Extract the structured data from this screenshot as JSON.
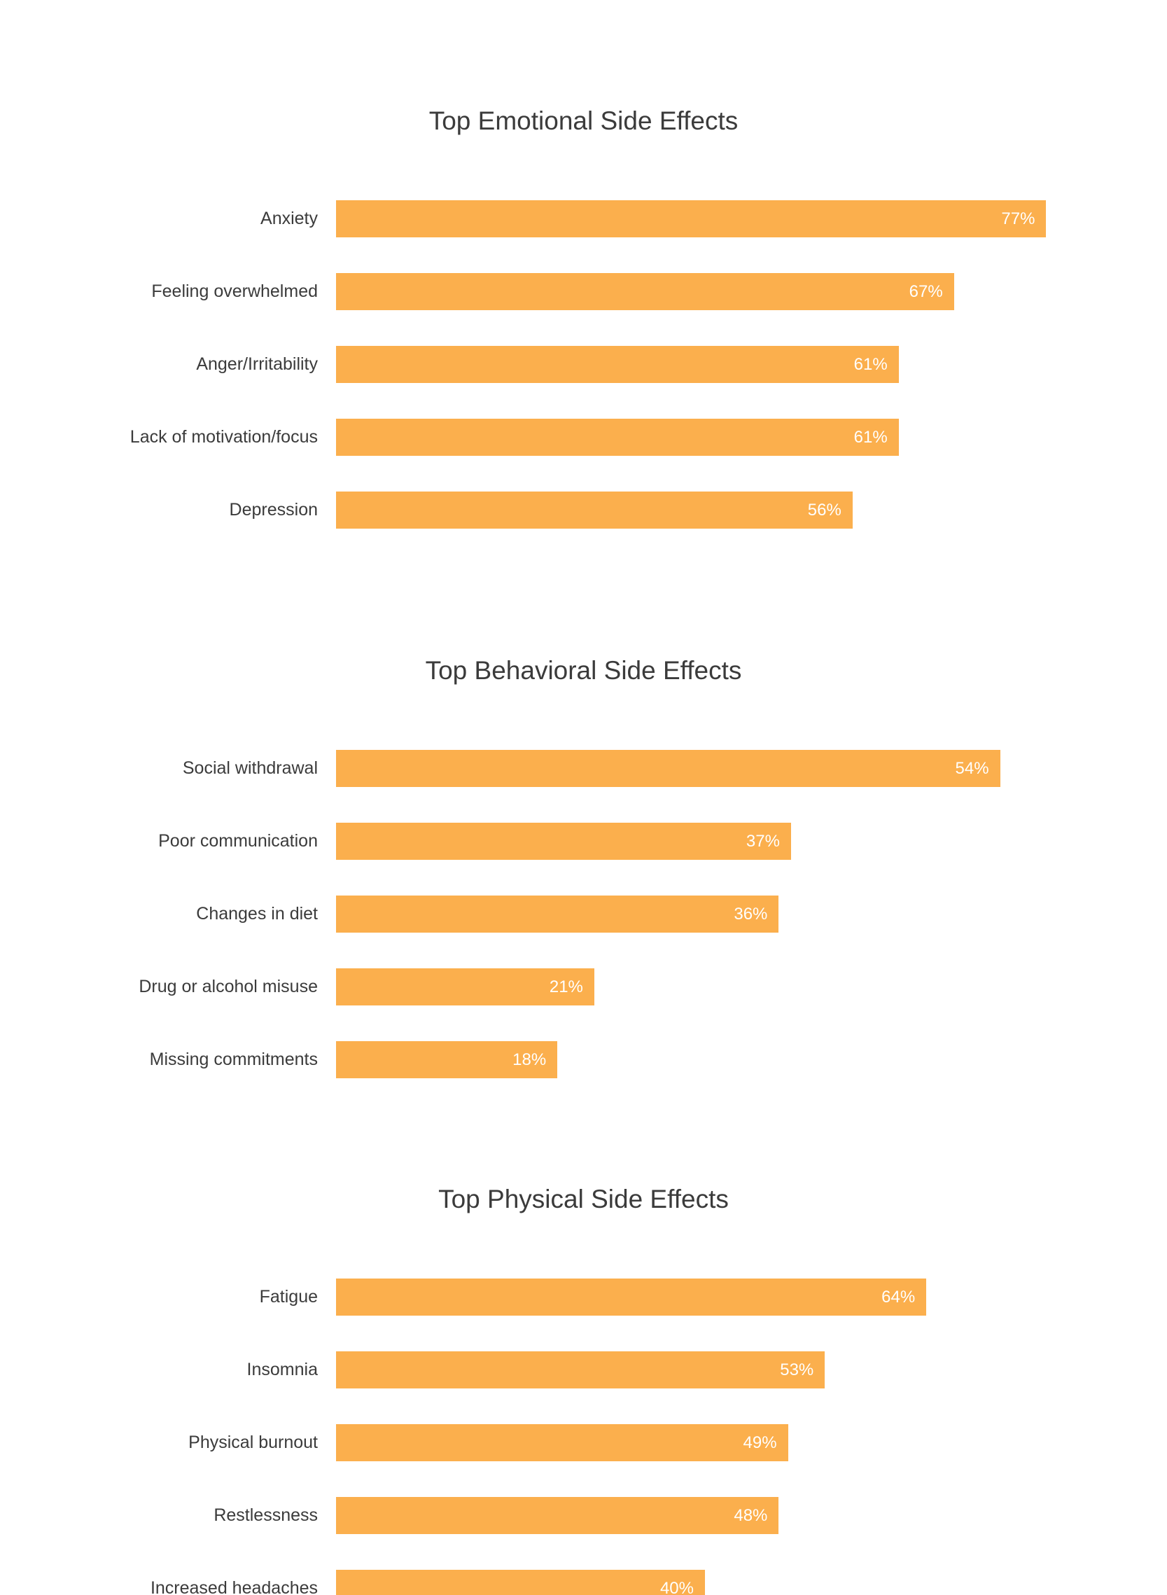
{
  "page": {
    "background_color": "#ffffff",
    "text_color": "#3b3b3b"
  },
  "chart_data": [
    {
      "type": "bar",
      "orientation": "horizontal",
      "title": "Top Emotional Side Effects",
      "categories": [
        "Anxiety",
        "Feeling overwhelmed",
        "Anger/Irritability",
        "Lack of motivation/focus",
        "Depression"
      ],
      "values": [
        77,
        67,
        61,
        61,
        56
      ],
      "value_suffix": "%",
      "xlabel": "",
      "ylabel": "",
      "xlim": [
        0,
        80
      ],
      "grid": false,
      "legend": false,
      "bar_color": "#FBAF4D",
      "value_label_color": "#ffffff",
      "category_label_color": "#3b3b3b"
    },
    {
      "type": "bar",
      "orientation": "horizontal",
      "title": "Top Behavioral Side Effects",
      "categories": [
        "Social withdrawal",
        "Poor communication",
        "Changes in diet",
        "Drug or alcohol misuse",
        "Missing commitments"
      ],
      "values": [
        54,
        37,
        36,
        21,
        18
      ],
      "value_suffix": "%",
      "xlabel": "",
      "ylabel": "",
      "xlim": [
        0,
        60
      ],
      "grid": false,
      "legend": false,
      "bar_color": "#FBAF4D",
      "value_label_color": "#ffffff",
      "category_label_color": "#3b3b3b"
    },
    {
      "type": "bar",
      "orientation": "horizontal",
      "title": "Top Physical Side Effects",
      "categories": [
        "Fatigue",
        "Insomnia",
        "Physical burnout",
        "Restlessness",
        "Increased headaches"
      ],
      "values": [
        64,
        53,
        49,
        48,
        40
      ],
      "value_suffix": "%",
      "xlabel": "",
      "ylabel": "",
      "xlim": [
        0,
        80
      ],
      "grid": false,
      "legend": false,
      "bar_color": "#FBAF4D",
      "value_label_color": "#ffffff",
      "category_label_color": "#3b3b3b"
    }
  ]
}
